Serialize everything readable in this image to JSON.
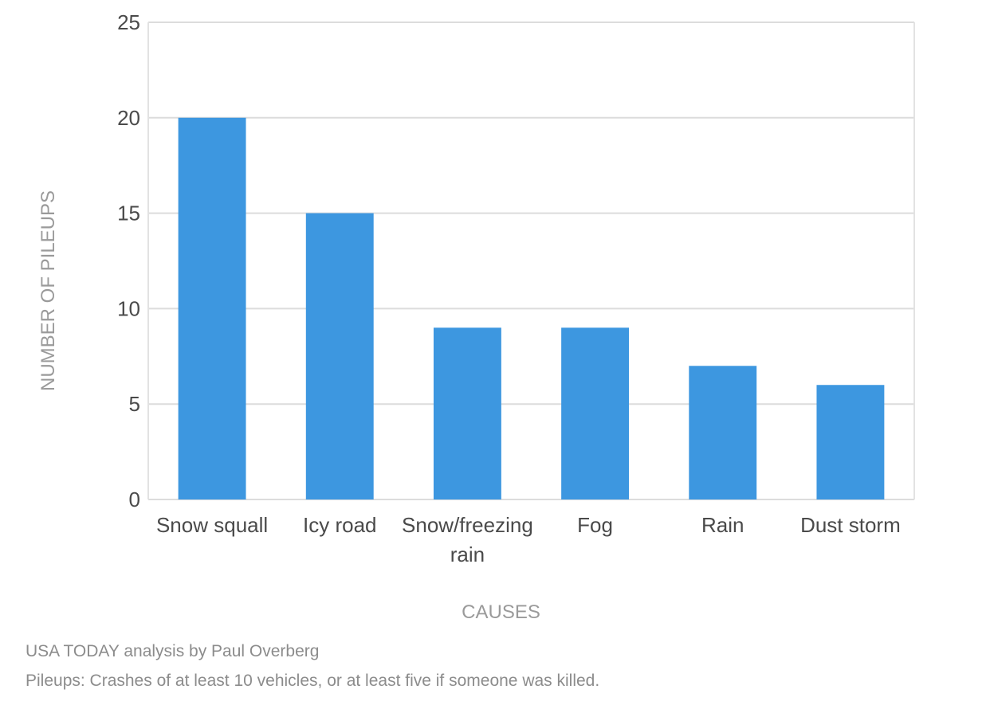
{
  "chart_data": {
    "type": "bar",
    "categories": [
      "Snow squall",
      "Icy road",
      "Snow/freezing rain",
      "Fog",
      "Rain",
      "Dust storm"
    ],
    "category_lines": [
      [
        "Snow squall"
      ],
      [
        "Icy road"
      ],
      [
        "Snow/freezing",
        "rain"
      ],
      [
        "Fog"
      ],
      [
        "Rain"
      ],
      [
        "Dust storm"
      ]
    ],
    "values": [
      20,
      15,
      9,
      9,
      7,
      6
    ],
    "xlabel": "CAUSES",
    "ylabel": "NUMBER OF PILEUPS",
    "ylim": [
      0,
      25
    ],
    "yticks": [
      0,
      5,
      10,
      15,
      20,
      25
    ],
    "grid": true,
    "bar_color": "#3d97e0"
  },
  "footer": {
    "source": "USA TODAY analysis by Paul Overberg",
    "note": "Pileups: Crashes of at least 10 vehicles, or at least five if someone was killed."
  }
}
